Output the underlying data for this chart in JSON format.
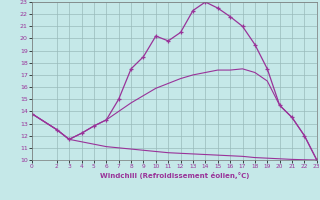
{
  "xlabel": "Windchill (Refroidissement éolien,°C)",
  "bg_color": "#c5e8e8",
  "line_color": "#993399",
  "grid_color": "#99bbbb",
  "xmin": 0,
  "xmax": 23,
  "ymin": 10,
  "ymax": 23,
  "line1_x": [
    0,
    2,
    3,
    4,
    5,
    6,
    7,
    8,
    9,
    10,
    11,
    12,
    13,
    14,
    15,
    16,
    17,
    18,
    19,
    20,
    21,
    22,
    23
  ],
  "line1_y": [
    13.8,
    12.5,
    11.7,
    12.2,
    12.8,
    13.3,
    15.0,
    17.5,
    18.5,
    20.2,
    19.8,
    20.5,
    22.3,
    23.0,
    22.5,
    21.8,
    21.0,
    19.5,
    17.5,
    14.5,
    13.5,
    12.0,
    10.0
  ],
  "line2_x": [
    0,
    2,
    3,
    4,
    5,
    6,
    7,
    8,
    9,
    10,
    11,
    12,
    13,
    14,
    15,
    16,
    17,
    18,
    19,
    20,
    21,
    22,
    23
  ],
  "line2_y": [
    13.8,
    12.5,
    11.7,
    12.2,
    12.8,
    13.3,
    14.0,
    14.7,
    15.3,
    15.9,
    16.3,
    16.7,
    17.0,
    17.2,
    17.4,
    17.4,
    17.5,
    17.2,
    16.5,
    14.5,
    13.5,
    12.0,
    10.0
  ],
  "line3_x": [
    0,
    2,
    3,
    4,
    5,
    6,
    7,
    8,
    9,
    10,
    11,
    12,
    13,
    14,
    15,
    16,
    17,
    18,
    19,
    20,
    21,
    22,
    23
  ],
  "line3_y": [
    13.8,
    12.5,
    11.7,
    11.5,
    11.3,
    11.1,
    11.0,
    10.9,
    10.8,
    10.7,
    10.6,
    10.55,
    10.5,
    10.45,
    10.4,
    10.35,
    10.3,
    10.2,
    10.15,
    10.1,
    10.05,
    10.02,
    10.0
  ],
  "yticks": [
    10,
    11,
    12,
    13,
    14,
    15,
    16,
    17,
    18,
    19,
    20,
    21,
    22,
    23
  ],
  "xticks": [
    0,
    2,
    3,
    4,
    5,
    6,
    7,
    8,
    9,
    10,
    11,
    12,
    13,
    14,
    15,
    16,
    17,
    18,
    19,
    20,
    21,
    22,
    23
  ]
}
